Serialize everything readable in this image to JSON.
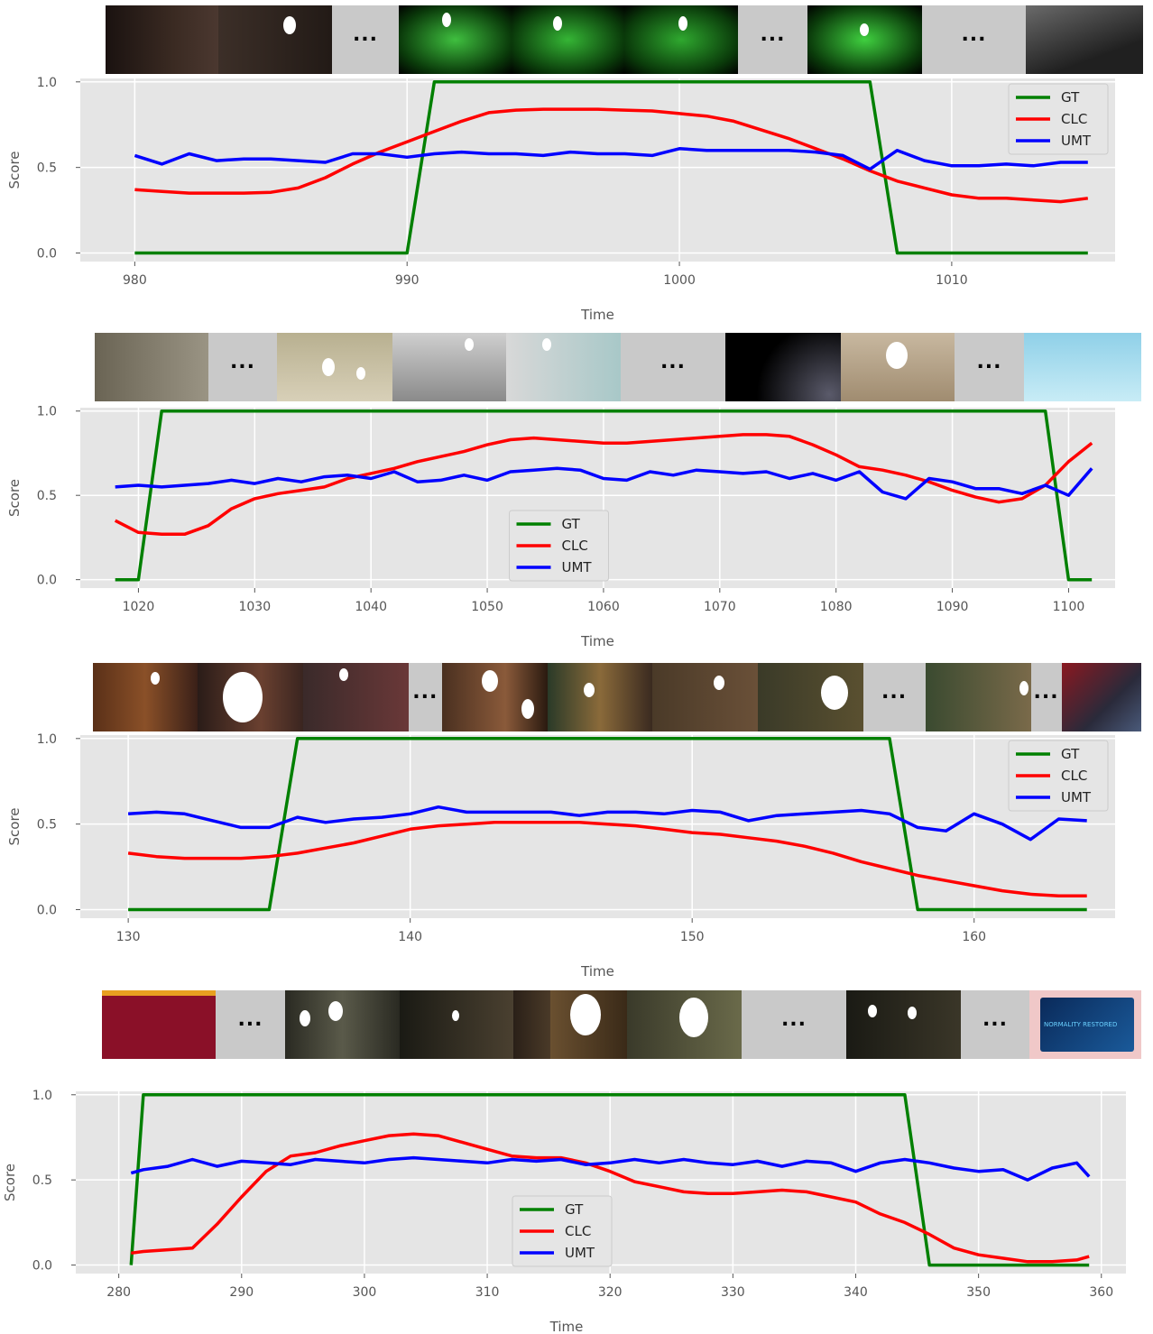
{
  "colors": {
    "gt": "#008000",
    "clc": "#ff0000",
    "umt": "#0000ff",
    "plot_bg": "#e5e5e5",
    "grid": "#ffffff"
  },
  "chart_data": [
    {
      "type": "line",
      "xlabel": "Time",
      "ylabel": "Score",
      "xlim": [
        978,
        1016
      ],
      "ylim": [
        -0.05,
        1.02
      ],
      "xticks": [
        980,
        990,
        1000,
        1010
      ],
      "yticks": [
        "0.0",
        "0.5",
        "1.0"
      ],
      "legend": "top-right",
      "thumbnail_frames": [
        "dark-corridor",
        "person-at-door",
        "ellipsis",
        "night-vision-1",
        "night-vision-2",
        "night-vision-3",
        "ellipsis",
        "night-vision-4",
        "ellipsis",
        "dim-room"
      ],
      "x": [
        980,
        981,
        982,
        983,
        984,
        985,
        986,
        987,
        988,
        989,
        990,
        991,
        992,
        993,
        994,
        995,
        996,
        997,
        998,
        999,
        1000,
        1001,
        1002,
        1003,
        1004,
        1005,
        1006,
        1007,
        1008,
        1009,
        1010,
        1011,
        1012,
        1013,
        1014,
        1015
      ],
      "series": [
        {
          "name": "GT",
          "values": [
            0,
            0,
            0,
            0,
            0,
            0,
            0,
            0,
            0,
            0,
            0,
            1,
            1,
            1,
            1,
            1,
            1,
            1,
            1,
            1,
            1,
            1,
            1,
            1,
            1,
            1,
            1,
            1,
            0,
            0,
            0,
            0,
            0,
            0,
            0,
            0
          ]
        },
        {
          "name": "CLC",
          "values": [
            0.37,
            0.36,
            0.35,
            0.35,
            0.35,
            0.355,
            0.38,
            0.44,
            0.52,
            0.59,
            0.65,
            0.71,
            0.77,
            0.82,
            0.835,
            0.84,
            0.84,
            0.84,
            0.835,
            0.83,
            0.815,
            0.8,
            0.77,
            0.72,
            0.67,
            0.61,
            0.55,
            0.48,
            0.42,
            0.38,
            0.34,
            0.32,
            0.32,
            0.31,
            0.3,
            0.32
          ]
        },
        {
          "name": "UMT",
          "values": [
            0.57,
            0.52,
            0.58,
            0.54,
            0.55,
            0.55,
            0.54,
            0.53,
            0.58,
            0.58,
            0.56,
            0.58,
            0.59,
            0.58,
            0.58,
            0.57,
            0.59,
            0.58,
            0.58,
            0.57,
            0.61,
            0.6,
            0.6,
            0.6,
            0.6,
            0.59,
            0.57,
            0.49,
            0.6,
            0.54,
            0.51,
            0.51,
            0.52,
            0.51,
            0.53,
            0.53
          ]
        }
      ]
    },
    {
      "type": "line",
      "xlabel": "Time",
      "ylabel": "Score",
      "xlim": [
        1015,
        1104
      ],
      "ylim": [
        -0.05,
        1.02
      ],
      "xticks": [
        1020,
        1030,
        1040,
        1050,
        1060,
        1070,
        1080,
        1090,
        1100
      ],
      "yticks": [
        "0.0",
        "0.5",
        "1.0"
      ],
      "legend": "bottom-center",
      "thumbnail_frames": [
        "hallway-figure",
        "ellipsis",
        "crowd-room",
        "lab-group",
        "control-panel",
        "ellipsis",
        "space-view",
        "person-seated",
        "ellipsis",
        "snow-field"
      ],
      "x": [
        1018,
        1020,
        1022,
        1024,
        1026,
        1028,
        1030,
        1032,
        1034,
        1036,
        1038,
        1040,
        1042,
        1044,
        1046,
        1048,
        1050,
        1052,
        1054,
        1056,
        1058,
        1060,
        1062,
        1064,
        1066,
        1068,
        1070,
        1072,
        1074,
        1076,
        1078,
        1080,
        1082,
        1084,
        1086,
        1088,
        1090,
        1092,
        1094,
        1096,
        1098,
        1100,
        1102
      ],
      "series": [
        {
          "name": "GT",
          "values": [
            0,
            0,
            1,
            1,
            1,
            1,
            1,
            1,
            1,
            1,
            1,
            1,
            1,
            1,
            1,
            1,
            1,
            1,
            1,
            1,
            1,
            1,
            1,
            1,
            1,
            1,
            1,
            1,
            1,
            1,
            1,
            1,
            1,
            1,
            1,
            1,
            1,
            1,
            1,
            1,
            1,
            0,
            0
          ]
        },
        {
          "name": "CLC",
          "values": [
            0.35,
            0.28,
            0.27,
            0.27,
            0.32,
            0.42,
            0.48,
            0.51,
            0.53,
            0.55,
            0.6,
            0.63,
            0.66,
            0.7,
            0.73,
            0.76,
            0.8,
            0.83,
            0.84,
            0.83,
            0.82,
            0.81,
            0.81,
            0.82,
            0.83,
            0.84,
            0.85,
            0.86,
            0.86,
            0.85,
            0.8,
            0.74,
            0.67,
            0.65,
            0.62,
            0.58,
            0.53,
            0.49,
            0.46,
            0.48,
            0.56,
            0.7,
            0.81
          ]
        },
        {
          "name": "UMT",
          "values": [
            0.55,
            0.56,
            0.55,
            0.56,
            0.57,
            0.59,
            0.57,
            0.6,
            0.58,
            0.61,
            0.62,
            0.6,
            0.64,
            0.58,
            0.59,
            0.62,
            0.59,
            0.64,
            0.65,
            0.66,
            0.65,
            0.6,
            0.59,
            0.64,
            0.62,
            0.65,
            0.64,
            0.63,
            0.64,
            0.6,
            0.63,
            0.59,
            0.64,
            0.52,
            0.48,
            0.6,
            0.58,
            0.54,
            0.54,
            0.51,
            0.56,
            0.5,
            0.66
          ]
        }
      ]
    },
    {
      "type": "line",
      "xlabel": "Time",
      "ylabel": "Score",
      "xlim": [
        128.3,
        165
      ],
      "ylim": [
        -0.05,
        1.02
      ],
      "xticks": [
        130,
        140,
        150,
        160
      ],
      "yticks": [
        "0.0",
        "0.5",
        "1.0"
      ],
      "legend": "top-right",
      "thumbnail_frames": [
        "party-crowd",
        "close-up-face",
        "festive-room",
        "ellipsis",
        "couple-scene",
        "bar-interior",
        "bar-man",
        "man-closeup",
        "ellipsis",
        "bar-wide",
        "ellipsis",
        "red-abstract"
      ],
      "x": [
        130,
        131,
        132,
        133,
        134,
        135,
        136,
        137,
        138,
        139,
        140,
        141,
        142,
        143,
        144,
        145,
        146,
        147,
        148,
        149,
        150,
        151,
        152,
        153,
        154,
        155,
        156,
        157,
        158,
        159,
        160,
        161,
        162,
        163,
        164
      ],
      "series": [
        {
          "name": "GT",
          "values": [
            0,
            0,
            0,
            0,
            0,
            0,
            1,
            1,
            1,
            1,
            1,
            1,
            1,
            1,
            1,
            1,
            1,
            1,
            1,
            1,
            1,
            1,
            1,
            1,
            1,
            1,
            1,
            1,
            0,
            0,
            0,
            0,
            0,
            0,
            0
          ]
        },
        {
          "name": "CLC",
          "values": [
            0.33,
            0.31,
            0.3,
            0.3,
            0.3,
            0.31,
            0.33,
            0.36,
            0.39,
            0.43,
            0.47,
            0.49,
            0.5,
            0.51,
            0.51,
            0.51,
            0.51,
            0.5,
            0.49,
            0.47,
            0.45,
            0.44,
            0.42,
            0.4,
            0.37,
            0.33,
            0.28,
            0.24,
            0.2,
            0.17,
            0.14,
            0.11,
            0.09,
            0.08,
            0.08
          ]
        },
        {
          "name": "UMT",
          "values": [
            0.56,
            0.57,
            0.56,
            0.52,
            0.48,
            0.48,
            0.54,
            0.51,
            0.53,
            0.54,
            0.56,
            0.6,
            0.57,
            0.57,
            0.57,
            0.57,
            0.55,
            0.57,
            0.57,
            0.56,
            0.58,
            0.57,
            0.52,
            0.55,
            0.56,
            0.57,
            0.58,
            0.56,
            0.48,
            0.46,
            0.56,
            0.5,
            0.41,
            0.53,
            0.52
          ]
        }
      ]
    },
    {
      "type": "line",
      "xlabel": "Time",
      "ylabel": "Score",
      "xlim": [
        276.5,
        362
      ],
      "ylim": [
        -0.05,
        1.02
      ],
      "xticks": [
        280,
        290,
        300,
        310,
        320,
        330,
        340,
        350,
        360
      ],
      "yticks": [
        "0.0",
        "0.5",
        "1.0"
      ],
      "legend": "bottom-center",
      "thumbnail_frames": [
        "cartoon-frame",
        "ellipsis",
        "dark-creature",
        "dim-hall",
        "dark-room",
        "face-closeup",
        "creature-closeup",
        "ellipsis",
        "corridor-figure",
        "ellipsis",
        "screen-display"
      ],
      "screen_text": "NORMALITY RESTORED",
      "x": [
        281,
        282,
        284,
        286,
        288,
        290,
        292,
        294,
        296,
        298,
        300,
        302,
        304,
        306,
        308,
        310,
        312,
        314,
        316,
        318,
        320,
        322,
        324,
        326,
        328,
        330,
        332,
        334,
        336,
        338,
        340,
        342,
        344,
        346,
        348,
        350,
        352,
        354,
        356,
        358,
        359
      ],
      "series": [
        {
          "name": "GT",
          "values": [
            0,
            1,
            1,
            1,
            1,
            1,
            1,
            1,
            1,
            1,
            1,
            1,
            1,
            1,
            1,
            1,
            1,
            1,
            1,
            1,
            1,
            1,
            1,
            1,
            1,
            1,
            1,
            1,
            1,
            1,
            1,
            1,
            1,
            0,
            0,
            0,
            0,
            0,
            0,
            0,
            0
          ]
        },
        {
          "name": "CLC",
          "values": [
            0.07,
            0.08,
            0.09,
            0.1,
            0.24,
            0.4,
            0.55,
            0.64,
            0.66,
            0.7,
            0.73,
            0.76,
            0.77,
            0.76,
            0.72,
            0.68,
            0.64,
            0.63,
            0.63,
            0.6,
            0.55,
            0.49,
            0.46,
            0.43,
            0.42,
            0.42,
            0.43,
            0.44,
            0.43,
            0.4,
            0.37,
            0.3,
            0.25,
            0.18,
            0.1,
            0.06,
            0.04,
            0.02,
            0.02,
            0.03,
            0.05
          ]
        },
        {
          "name": "UMT",
          "values": [
            0.54,
            0.56,
            0.58,
            0.62,
            0.58,
            0.61,
            0.6,
            0.59,
            0.62,
            0.61,
            0.6,
            0.62,
            0.63,
            0.62,
            0.61,
            0.6,
            0.62,
            0.61,
            0.62,
            0.59,
            0.6,
            0.62,
            0.6,
            0.62,
            0.6,
            0.59,
            0.61,
            0.58,
            0.61,
            0.6,
            0.55,
            0.6,
            0.62,
            0.6,
            0.57,
            0.55,
            0.56,
            0.5,
            0.57,
            0.6,
            0.52
          ]
        }
      ]
    }
  ]
}
